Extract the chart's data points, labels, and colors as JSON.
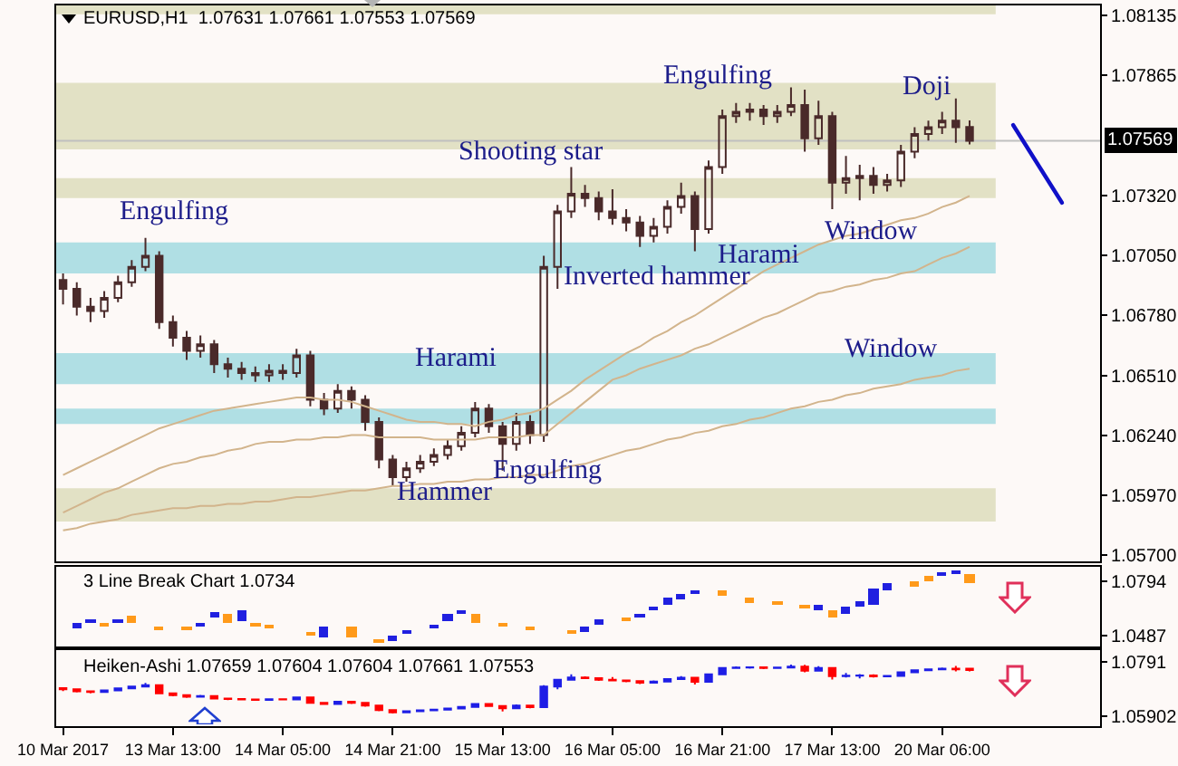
{
  "chart_data": [
    {
      "type": "candlestick",
      "title": "EURUSD,H1  1.07631 1.07661 1.07553 1.07569",
      "tick_labels": "y",
      "color": "#4a2a2a",
      "categories": [
        null,
        null,
        null,
        null,
        null,
        null,
        null,
        null,
        null,
        null,
        null,
        null,
        null,
        null,
        null,
        null,
        null,
        null,
        null,
        null,
        null,
        null,
        null,
        null,
        null,
        null,
        null,
        null,
        null,
        null,
        null,
        null,
        null,
        null,
        null,
        null,
        null,
        null,
        null,
        null,
        null,
        null,
        null,
        null,
        null,
        null,
        null,
        null,
        null,
        null,
        null,
        null,
        null,
        null,
        null,
        null,
        null,
        null,
        null,
        null,
        null,
        null,
        null,
        null,
        null,
        null,
        null,
        null,
        null,
        null,
        null,
        null,
        null,
        null,
        null,
        null
      ],
      "ylim": [
        1.0567,
        1.0818
      ],
      "yticks": [
        {
          "value": 1.057,
          "label": "1.05700"
        },
        {
          "value": 1.0597,
          "label": "1.05970"
        },
        {
          "value": 1.0624,
          "label": "1.06240"
        },
        {
          "value": 1.0651,
          "label": "1.06510"
        },
        {
          "value": 1.0678,
          "label": "1.06780"
        },
        {
          "value": 1.0705,
          "label": "1.07050"
        },
        {
          "value": 1.0732,
          "label": "1.07320"
        },
        1.07865,
        1.08135
      ],
      "ohlc": [
        [
          1.0694,
          1.0697,
          1.0683,
          1.069
        ],
        [
          1.069,
          1.0693,
          1.0678,
          1.0682
        ],
        [
          1.0682,
          1.0686,
          1.0675,
          1.068
        ],
        [
          1.068,
          1.0689,
          1.0677,
          1.0686
        ],
        [
          1.0686,
          1.0696,
          1.0684,
          1.0693
        ],
        [
          1.0693,
          1.0703,
          1.0691,
          1.07
        ],
        [
          1.07,
          1.0713,
          1.0698,
          1.0705
        ],
        [
          1.0705,
          1.0707,
          1.0672,
          1.0675
        ],
        [
          1.0675,
          1.0678,
          1.0664,
          1.0668
        ],
        [
          1.0668,
          1.0671,
          1.0658,
          1.0662
        ],
        [
          1.0662,
          1.0669,
          1.0659,
          1.0665
        ],
        [
          1.0665,
          1.0667,
          1.0652,
          1.0656
        ],
        [
          1.0656,
          1.0659,
          1.065,
          1.0654
        ],
        [
          1.0654,
          1.0657,
          1.0649,
          1.0652
        ],
        [
          1.0652,
          1.0655,
          1.0648,
          1.0651
        ],
        [
          1.0651,
          1.0656,
          1.0648,
          1.0653
        ],
        [
          1.0653,
          1.0656,
          1.0649,
          1.0652
        ],
        [
          1.0652,
          1.0663,
          1.065,
          1.066
        ],
        [
          1.066,
          1.0662,
          1.0637,
          1.064
        ],
        [
          1.064,
          1.0643,
          1.0633,
          1.0636
        ],
        [
          1.0636,
          1.0647,
          1.0634,
          1.0644
        ],
        [
          1.0644,
          1.0646,
          1.0636,
          1.064
        ],
        [
          1.064,
          1.0642,
          1.0626,
          1.063
        ],
        [
          1.063,
          1.0632,
          1.0609,
          1.0613
        ],
        [
          1.0613,
          1.0615,
          1.0601,
          1.0605
        ],
        [
          1.0605,
          1.0612,
          1.0603,
          1.0609
        ],
        [
          1.0609,
          1.0615,
          1.0607,
          1.0612
        ],
        [
          1.0612,
          1.0618,
          1.061,
          1.0615
        ],
        [
          1.0615,
          1.0622,
          1.0613,
          1.0619
        ],
        [
          1.0619,
          1.0628,
          1.0617,
          1.0625
        ],
        [
          1.0625,
          1.0639,
          1.0623,
          1.0636
        ],
        [
          1.0636,
          1.0638,
          1.0625,
          1.0628
        ],
        [
          1.0628,
          1.063,
          1.0608,
          1.062
        ],
        [
          1.062,
          1.0634,
          1.0617,
          1.063
        ],
        [
          1.063,
          1.0633,
          1.062,
          1.0624
        ],
        [
          1.0624,
          1.0705,
          1.0621,
          1.07
        ],
        [
          1.07,
          1.0728,
          1.069,
          1.0725
        ],
        [
          1.0725,
          1.0745,
          1.0722,
          1.0733
        ],
        [
          1.0733,
          1.0737,
          1.0727,
          1.0731
        ],
        [
          1.0731,
          1.0734,
          1.0721,
          1.0725
        ],
        [
          1.0725,
          1.0735,
          1.0719,
          1.0722
        ],
        [
          1.0722,
          1.0726,
          1.0716,
          1.072
        ],
        [
          1.072,
          1.0723,
          1.0709,
          1.0714
        ],
        [
          1.0714,
          1.0722,
          1.0711,
          1.0718
        ],
        [
          1.0718,
          1.073,
          1.0715,
          1.0727
        ],
        [
          1.0727,
          1.0738,
          1.0724,
          1.0732
        ],
        [
          1.0732,
          1.0734,
          1.0707,
          1.0717
        ],
        [
          1.0717,
          1.0748,
          1.0715,
          1.0745
        ],
        [
          1.0745,
          1.0771,
          1.0742,
          1.0768
        ],
        [
          1.0768,
          1.0774,
          1.0765,
          1.077
        ],
        [
          1.077,
          1.0774,
          1.0766,
          1.0771
        ],
        [
          1.0771,
          1.0773,
          1.0764,
          1.0768
        ],
        [
          1.0768,
          1.0773,
          1.0765,
          1.077
        ],
        [
          1.077,
          1.0781,
          1.0768,
          1.0773
        ],
        [
          1.0773,
          1.078,
          1.0752,
          1.0758
        ],
        [
          1.0758,
          1.0775,
          1.0755,
          1.0768
        ],
        [
          1.0768,
          1.077,
          1.0726,
          1.0738
        ],
        [
          1.0738,
          1.075,
          1.0733,
          1.074
        ],
        [
          1.074,
          1.0746,
          1.073,
          1.0741
        ],
        [
          1.0741,
          1.0745,
          1.0733,
          1.0737
        ],
        [
          1.0737,
          1.0742,
          1.0734,
          1.0739
        ],
        [
          1.0739,
          1.0755,
          1.0736,
          1.0752
        ],
        [
          1.0752,
          1.0763,
          1.0749,
          1.076
        ],
        [
          1.076,
          1.0766,
          1.0757,
          1.0763
        ],
        [
          1.0763,
          1.077,
          1.076,
          1.0766
        ],
        [
          1.0766,
          1.0776,
          1.0756,
          1.0763
        ],
        [
          1.07631,
          1.07661,
          1.07553,
          1.07569
        ],
        null,
        null,
        null,
        null,
        null,
        null,
        null,
        null,
        null
      ],
      "series": [
        {
          "type": "line",
          "color": "#d2b48c",
          "values": [
            1.0606,
            1.0609,
            1.0612,
            1.0615,
            1.0618,
            1.0621,
            1.0624,
            1.0627,
            1.0629,
            1.0631,
            1.0633,
            1.0635,
            1.0636,
            1.0637,
            1.0638,
            1.0639,
            1.064,
            1.0641,
            1.0641,
            1.064,
            1.064,
            1.0639,
            1.0637,
            1.0635,
            1.0633,
            1.0631,
            1.063,
            1.063,
            1.0629,
            1.0629,
            1.0628,
            1.063,
            1.0631,
            1.0633,
            1.0634,
            1.0636,
            1.064,
            1.0644,
            1.0649,
            1.0653,
            1.0657,
            1.0661,
            1.0664,
            1.0668,
            1.0671,
            1.0675,
            1.0678,
            1.0682,
            1.0686,
            1.069,
            1.0694,
            1.0698,
            1.0701,
            1.0704,
            1.0707,
            1.071,
            1.0712,
            1.0714,
            1.0715,
            1.0717,
            1.0719,
            1.0721,
            1.0722,
            1.0724,
            1.0727,
            1.0729,
            1.0732,
            null,
            null,
            null,
            null,
            null,
            null,
            null,
            null,
            null
          ]
        },
        {
          "type": "line",
          "color": "#d2b48c",
          "values": [
            1.0589,
            1.0592,
            1.0595,
            1.0598,
            1.06,
            1.0603,
            1.0606,
            1.0609,
            1.0611,
            1.0612,
            1.0614,
            1.0615,
            1.0617,
            1.0618,
            1.062,
            1.0621,
            1.0621,
            1.0622,
            1.0622,
            1.0623,
            1.0623,
            1.0624,
            1.0624,
            1.0623,
            1.0623,
            1.0623,
            1.0623,
            1.0622,
            1.0622,
            1.0622,
            1.0622,
            1.0623,
            1.0623,
            1.0623,
            1.0624,
            1.0624,
            1.0629,
            1.0634,
            1.0639,
            1.0644,
            1.0649,
            1.0651,
            1.0654,
            1.0656,
            1.0658,
            1.066,
            1.0663,
            1.0665,
            1.0668,
            1.0671,
            1.0674,
            1.0677,
            1.0679,
            1.0682,
            1.0685,
            1.0688,
            1.0689,
            1.0691,
            1.0692,
            1.0694,
            1.0695,
            1.0697,
            1.0698,
            1.0701,
            1.0704,
            1.0706,
            1.0709,
            null,
            null,
            null,
            null,
            null,
            null,
            null,
            null,
            null
          ]
        },
        {
          "type": "line",
          "color": "#d2b48c",
          "values": [
            1.0581,
            1.0582,
            1.0584,
            1.0585,
            1.0586,
            1.0588,
            1.0589,
            1.059,
            1.0591,
            1.0591,
            1.0592,
            1.0592,
            1.0593,
            1.0593,
            1.0594,
            1.0594,
            1.0595,
            1.0596,
            1.0596,
            1.0597,
            1.0598,
            1.0599,
            1.0599,
            1.06,
            1.0601,
            1.0601,
            1.0602,
            1.0602,
            1.0603,
            1.0603,
            1.0604,
            1.0604,
            1.0605,
            1.0605,
            1.0606,
            1.0606,
            1.0608,
            1.061,
            1.0611,
            1.0613,
            1.0615,
            1.0617,
            1.0618,
            1.062,
            1.0622,
            1.0623,
            1.0625,
            1.0626,
            1.0628,
            1.0629,
            1.0631,
            1.0632,
            1.0634,
            1.0636,
            1.0637,
            1.0639,
            1.064,
            1.0642,
            1.0643,
            1.0645,
            1.0646,
            1.0647,
            1.0649,
            1.065,
            1.0651,
            1.0653,
            1.0654,
            null,
            null,
            null,
            null,
            null,
            null,
            null,
            null,
            null
          ]
        }
      ],
      "bands": [
        {
          "axis": "y",
          "from": 1.0814,
          "to": 1.0818,
          "color": "#e2e1c5"
        },
        {
          "axis": "y",
          "from": 1.0753,
          "to": 1.0783,
          "color": "#e2e1c5"
        },
        {
          "axis": "y",
          "from": 1.0731,
          "to": 1.074,
          "color": "#e2e1c5"
        },
        {
          "axis": "y",
          "from": 1.0697,
          "to": 1.0711,
          "color": "#b0dfe4"
        },
        {
          "axis": "y",
          "from": 1.0647,
          "to": 1.0661,
          "color": "#b0dfe4"
        },
        {
          "axis": "y",
          "from": 1.0629,
          "to": 1.0636,
          "color": "#b0dfe4"
        },
        {
          "axis": "y",
          "from": 1.0585,
          "to": 1.06,
          "color": "#e2e1c5"
        }
      ],
      "ref_lines": [
        {
          "axis": "y",
          "value": 1.07569,
          "label": "1.07569",
          "color": "#c0c0c0"
        }
      ],
      "annotations": [
        "Engulfing",
        "Hammer",
        "Harami",
        "Engulfing",
        "Shooting star",
        "Inverted hammer",
        "Engulfing",
        "Harami",
        "Doji",
        "Window",
        "Window"
      ]
    },
    {
      "type": "bar",
      "title": "3 Line Break Chart 1.0734",
      "tick_labels": "y",
      "categories": [
        null,
        null,
        null,
        null,
        null,
        null,
        null,
        null,
        null,
        null,
        null,
        null,
        null,
        null,
        null,
        null,
        null,
        null,
        null,
        null,
        null,
        null,
        null,
        null,
        null,
        null,
        null,
        null,
        null,
        null,
        null,
        null,
        null,
        null,
        null,
        null,
        null,
        null,
        null,
        null,
        null,
        null,
        null,
        null,
        null,
        null,
        null,
        null,
        null,
        null,
        null,
        null,
        null,
        null,
        null,
        null,
        null,
        null,
        null,
        null,
        null,
        null,
        null,
        null,
        null,
        null,
        null,
        null,
        null,
        null,
        null,
        null,
        null,
        null,
        null,
        null
      ],
      "ylim": [
        1.0424,
        1.0878
      ],
      "yticks": [
        1.0487,
        1.0794
      ],
      "base": [
        null,
        1.0529,
        1.0555,
        1.0538,
        1.0555,
        1.0563,
        null,
        1.0525,
        null,
        1.0517,
        1.0542,
        1.0588,
        1.0563,
        1.0571,
        1.0538,
        1.0529,
        null,
        null,
        1.0487,
        1.0479,
        null,
        1.0479,
        null,
        1.045,
        1.0454,
        1.0496,
        null,
        1.0529,
        1.0571,
        1.0605,
        1.0563,
        null,
        1.0542,
        null,
        1.0521,
        null,
        null,
        1.0504,
        1.0504,
        1.0546,
        null,
        1.0576,
        1.0588,
        1.0626,
        1.0664,
        1.0697,
        1.0723,
        null,
        1.071,
        null,
        1.0681,
        null,
        1.0664,
        null,
        1.0647,
        1.063,
        1.0588,
        1.0605,
        1.0647,
        1.0664,
        1.0748,
        null,
        1.0765,
        1.0798,
        1.0823,
        1.084,
        1.079,
        null,
        null,
        null,
        null,
        null,
        null,
        null,
        null,
        null
      ],
      "values": [
        null,
        0.0034,
        0.0025,
        0.0017,
        0.0025,
        0.0038,
        null,
        0.0017,
        null,
        0.0017,
        0.0021,
        0.0034,
        0.005,
        0.0059,
        0.0025,
        0.0017,
        null,
        null,
        0.0021,
        0.0059,
        null,
        0.0059,
        null,
        0.0017,
        0.0034,
        0.0025,
        null,
        0.0021,
        0.0034,
        0.0029,
        0.0042,
        null,
        0.0021,
        null,
        0.0017,
        null,
        null,
        0.0017,
        0.0034,
        0.0034,
        null,
        0.0017,
        0.0025,
        0.0029,
        0.0034,
        0.0025,
        0.0025,
        null,
        0.0038,
        null,
        0.0017,
        null,
        0.0017,
        null,
        0.0017,
        0.0034,
        0.0042,
        0.0042,
        0.0034,
        0.0092,
        0.0042,
        null,
        0.0034,
        0.0025,
        0.0025,
        0.0017,
        0.0042,
        null,
        null,
        null,
        null,
        null,
        null,
        null,
        null,
        null
      ],
      "colors": [
        null,
        "#2020e0",
        "#2020e0",
        "#ff9a1a",
        "#2020e0",
        "#ff9a1a",
        null,
        "#ff9a1a",
        null,
        "#ff9a1a",
        "#2020e0",
        "#2020e0",
        "#ff9a1a",
        "#2020e0",
        "#ff9a1a",
        "#ff9a1a",
        null,
        null,
        "#ff9a1a",
        "#2020e0",
        null,
        "#ff9a1a",
        null,
        "#ff9a1a",
        "#2020e0",
        "#2020e0",
        null,
        "#2020e0",
        "#2020e0",
        "#2020e0",
        "#ff9a1a",
        null,
        "#ff9a1a",
        null,
        "#ff9a1a",
        null,
        null,
        "#ff9a1a",
        "#2020e0",
        "#2020e0",
        null,
        "#ff9a1a",
        "#2020e0",
        "#2020e0",
        "#2020e0",
        "#2020e0",
        "#2020e0",
        null,
        "#ff9a1a",
        null,
        "#ff9a1a",
        null,
        "#ff9a1a",
        null,
        "#ff9a1a",
        "#2020e0",
        "#ff9a1a",
        "#2020e0",
        "#2020e0",
        "#2020e0",
        "#2020e0",
        null,
        "#ff9a1a",
        "#ff9a1a",
        "#2020e0",
        "#2020e0",
        "#ff9a1a",
        null,
        null,
        null,
        null,
        null,
        null,
        null,
        null,
        null
      ]
    },
    {
      "type": "candlestick",
      "title": "Heiken-Ashi 1.07659 1.07604 1.07604 1.07661 1.07553",
      "categories": [
        "10 Mar 2017",
        null,
        null,
        null,
        null,
        null,
        null,
        null,
        "13 Mar 13:00",
        null,
        null,
        null,
        null,
        null,
        null,
        null,
        "14 Mar 05:00",
        null,
        null,
        null,
        null,
        null,
        null,
        null,
        "14 Mar 21:00",
        null,
        null,
        null,
        null,
        null,
        null,
        null,
        "15 Mar 13:00",
        null,
        null,
        null,
        null,
        null,
        null,
        null,
        "16 Mar 05:00",
        null,
        null,
        null,
        null,
        null,
        null,
        null,
        "16 Mar 21:00",
        null,
        null,
        null,
        null,
        null,
        null,
        null,
        "17 Mar 13:00",
        null,
        null,
        null,
        null,
        null,
        null,
        null,
        "20 Mar 06:00",
        null,
        null,
        null,
        null,
        null,
        null,
        null,
        null,
        null,
        null,
        null
      ],
      "ylim": [
        1.0554,
        1.0834
      ],
      "yticks": [
        1.05902,
        1.0791
      ],
      "ohlc": [
        [
          1.0694,
          1.0697,
          1.0683,
          1.069
        ],
        [
          1.069,
          1.0693,
          1.0678,
          1.0682
        ],
        [
          1.0682,
          1.0686,
          1.0675,
          1.068
        ],
        [
          1.068,
          1.0689,
          1.0677,
          1.0686
        ],
        [
          1.0686,
          1.0696,
          1.0684,
          1.0693
        ],
        [
          1.0693,
          1.0703,
          1.0691,
          1.07
        ],
        [
          1.07,
          1.0713,
          1.0698,
          1.0705
        ],
        [
          1.0705,
          1.0707,
          1.0672,
          1.0675
        ],
        [
          1.0675,
          1.0678,
          1.0664,
          1.0668
        ],
        [
          1.0668,
          1.0671,
          1.0658,
          1.0662
        ],
        [
          1.0662,
          1.0669,
          1.0659,
          1.0665
        ],
        [
          1.0665,
          1.0667,
          1.0652,
          1.0656
        ],
        [
          1.0656,
          1.0659,
          1.065,
          1.0654
        ],
        [
          1.0654,
          1.0657,
          1.0649,
          1.0652
        ],
        [
          1.0652,
          1.0655,
          1.0648,
          1.0651
        ],
        [
          1.0651,
          1.0656,
          1.0648,
          1.0653
        ],
        [
          1.0653,
          1.0656,
          1.0649,
          1.0652
        ],
        [
          1.0652,
          1.0663,
          1.065,
          1.066
        ],
        [
          1.066,
          1.0662,
          1.0637,
          1.064
        ],
        [
          1.064,
          1.0643,
          1.0633,
          1.0636
        ],
        [
          1.0636,
          1.0647,
          1.0634,
          1.0644
        ],
        [
          1.0644,
          1.0646,
          1.0636,
          1.064
        ],
        [
          1.064,
          1.0642,
          1.0626,
          1.063
        ],
        [
          1.063,
          1.0632,
          1.0609,
          1.0613
        ],
        [
          1.0613,
          1.0615,
          1.0601,
          1.0605
        ],
        [
          1.0605,
          1.0612,
          1.0603,
          1.0609
        ],
        [
          1.0609,
          1.0615,
          1.0607,
          1.0612
        ],
        [
          1.0612,
          1.0618,
          1.061,
          1.0615
        ],
        [
          1.0615,
          1.0622,
          1.0613,
          1.0619
        ],
        [
          1.0619,
          1.0628,
          1.0617,
          1.0625
        ],
        [
          1.0625,
          1.0639,
          1.0623,
          1.0636
        ],
        [
          1.0636,
          1.0638,
          1.0625,
          1.0628
        ],
        [
          1.0628,
          1.063,
          1.0608,
          1.062
        ],
        [
          1.062,
          1.0634,
          1.0617,
          1.063
        ],
        [
          1.063,
          1.0633,
          1.062,
          1.0624
        ],
        [
          1.0624,
          1.0705,
          1.0621,
          1.07
        ],
        [
          1.07,
          1.0728,
          1.069,
          1.0725
        ],
        [
          1.0725,
          1.0745,
          1.0722,
          1.0733
        ],
        [
          1.0733,
          1.0737,
          1.0727,
          1.0731
        ],
        [
          1.0731,
          1.0734,
          1.0721,
          1.0725
        ],
        [
          1.0725,
          1.0735,
          1.0719,
          1.0722
        ],
        [
          1.0722,
          1.0726,
          1.0716,
          1.072
        ],
        [
          1.072,
          1.0723,
          1.0709,
          1.0714
        ],
        [
          1.0714,
          1.0722,
          1.0711,
          1.0718
        ],
        [
          1.0718,
          1.073,
          1.0715,
          1.0727
        ],
        [
          1.0727,
          1.0738,
          1.0724,
          1.0732
        ],
        [
          1.0732,
          1.0734,
          1.0707,
          1.0717
        ],
        [
          1.0717,
          1.0748,
          1.0715,
          1.0745
        ],
        [
          1.0745,
          1.0771,
          1.0742,
          1.0768
        ],
        [
          1.0768,
          1.0774,
          1.0765,
          1.077
        ],
        [
          1.077,
          1.0774,
          1.0766,
          1.0771
        ],
        [
          1.0771,
          1.0773,
          1.0764,
          1.0768
        ],
        [
          1.0768,
          1.0773,
          1.0765,
          1.077
        ],
        [
          1.077,
          1.0781,
          1.0768,
          1.0773
        ],
        [
          1.0773,
          1.078,
          1.0752,
          1.0758
        ],
        [
          1.0758,
          1.0775,
          1.0755,
          1.0768
        ],
        [
          1.0768,
          1.077,
          1.0726,
          1.0738
        ],
        [
          1.0738,
          1.075,
          1.0733,
          1.074
        ],
        [
          1.074,
          1.0746,
          1.073,
          1.0741
        ],
        [
          1.0741,
          1.0745,
          1.0733,
          1.0737
        ],
        [
          1.0737,
          1.0742,
          1.0734,
          1.0739
        ],
        [
          1.0739,
          1.0755,
          1.0736,
          1.0752
        ],
        [
          1.0752,
          1.0763,
          1.0749,
          1.076
        ],
        [
          1.076,
          1.0766,
          1.0757,
          1.0763
        ],
        [
          1.0763,
          1.077,
          1.076,
          1.0766
        ],
        [
          1.0766,
          1.0776,
          1.0756,
          1.0763
        ],
        [
          1.07659,
          1.07661,
          1.07553,
          1.07604
        ],
        null,
        null,
        null,
        null,
        null,
        null,
        null,
        null,
        null
      ],
      "colors": [
        "#ff0000",
        "#ff0000",
        "#ff0000",
        "#1e1ee6",
        "#1e1ee6",
        "#1e1ee6",
        "#1e1ee6",
        "#ff0000",
        "#ff0000",
        "#ff0000",
        "#1e1ee6",
        "#ff0000",
        "#ff0000",
        "#ff0000",
        "#ff0000",
        "#1e1ee6",
        "#ff0000",
        "#1e1ee6",
        "#ff0000",
        "#ff0000",
        "#1e1ee6",
        "#ff0000",
        "#ff0000",
        "#ff0000",
        "#ff0000",
        "#1e1ee6",
        "#1e1ee6",
        "#1e1ee6",
        "#1e1ee6",
        "#1e1ee6",
        "#1e1ee6",
        "#ff0000",
        "#ff0000",
        "#1e1ee6",
        "#ff0000",
        "#1e1ee6",
        "#1e1ee6",
        "#1e1ee6",
        "#ff0000",
        "#ff0000",
        "#ff0000",
        "#ff0000",
        "#ff0000",
        "#1e1ee6",
        "#1e1ee6",
        "#1e1ee6",
        "#ff0000",
        "#1e1ee6",
        "#1e1ee6",
        "#1e1ee6",
        "#1e1ee6",
        "#ff0000",
        "#1e1ee6",
        "#1e1ee6",
        "#ff0000",
        "#1e1ee6",
        "#ff0000",
        "#1e1ee6",
        "#1e1ee6",
        "#ff0000",
        "#1e1ee6",
        "#1e1ee6",
        "#1e1ee6",
        "#1e1ee6",
        "#1e1ee6",
        "#ff0000",
        "#ff0000",
        null,
        null,
        null,
        null,
        null,
        null,
        null,
        null,
        null
      ]
    }
  ]
}
